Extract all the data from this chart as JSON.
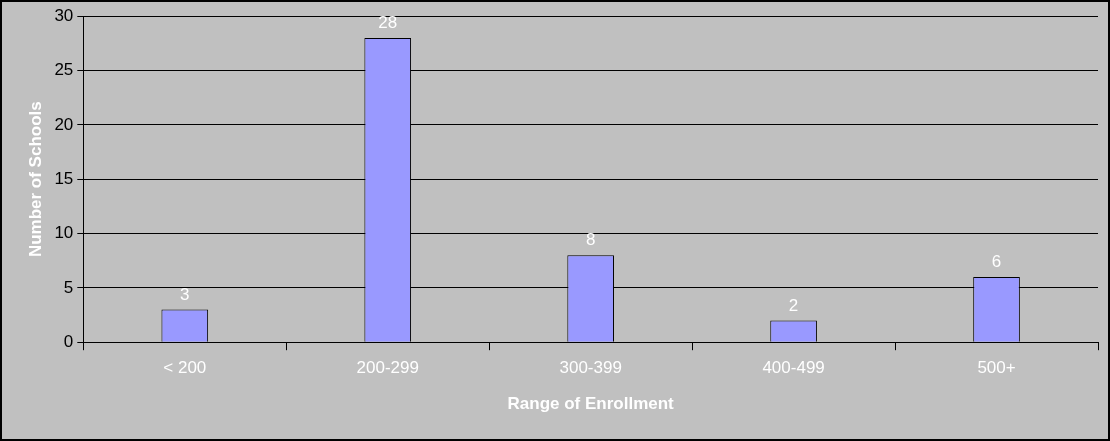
{
  "chart_data": {
    "type": "bar",
    "xlabel": "Range of Enrollment",
    "ylabel": "Number of Schools",
    "categories": [
      "< 200",
      "200-299",
      "300-399",
      "400-499",
      "500+"
    ],
    "values": [
      3,
      28,
      8,
      2,
      6
    ],
    "color": "#9999ff",
    "ylim": [
      0,
      30
    ],
    "yticks": [
      0,
      5,
      10,
      15,
      20,
      25,
      30
    ],
    "grid": "y",
    "data_labels": true
  }
}
